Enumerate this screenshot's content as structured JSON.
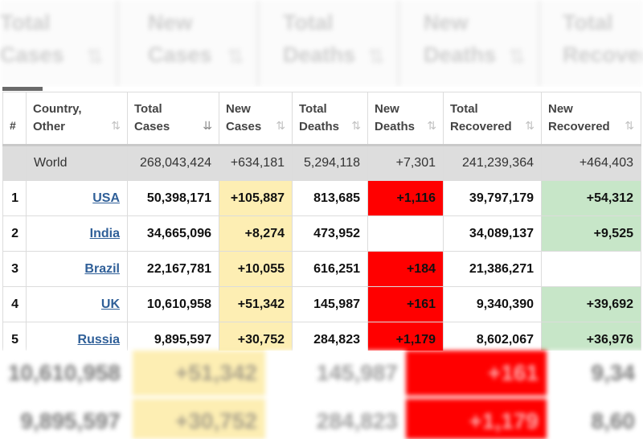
{
  "table": {
    "headers": [
      {
        "label": "#",
        "sortable": false
      },
      {
        "label": "Country,\nOther",
        "sortable": true
      },
      {
        "label": "Total\nCases",
        "sortable": true,
        "active": true
      },
      {
        "label": "New\nCases",
        "sortable": true
      },
      {
        "label": "Total\nDeaths",
        "sortable": true
      },
      {
        "label": "New\nDeaths",
        "sortable": true
      },
      {
        "label": "Total\nRecovered",
        "sortable": true
      },
      {
        "label": "New\nRecovered",
        "sortable": true
      }
    ],
    "world": {
      "country": "World",
      "total_cases": "268,043,424",
      "new_cases": "+634,181",
      "total_deaths": "5,294,118",
      "new_deaths": "+7,301",
      "total_recovered": "241,239,364",
      "new_recovered": "+464,403"
    },
    "rows": [
      {
        "rank": "1",
        "country": "USA",
        "total_cases": "50,398,171",
        "new_cases": "+105,887",
        "total_deaths": "813,685",
        "new_deaths": "+1,116",
        "total_recovered": "39,797,179",
        "new_recovered": "+54,312"
      },
      {
        "rank": "2",
        "country": "India",
        "total_cases": "34,665,096",
        "new_cases": "+8,274",
        "total_deaths": "473,952",
        "new_deaths": "",
        "total_recovered": "34,089,137",
        "new_recovered": "+9,525"
      },
      {
        "rank": "3",
        "country": "Brazil",
        "total_cases": "22,167,781",
        "new_cases": "+10,055",
        "total_deaths": "616,251",
        "new_deaths": "+184",
        "total_recovered": "21,386,271",
        "new_recovered": ""
      },
      {
        "rank": "4",
        "country": "UK",
        "total_cases": "10,610,958",
        "new_cases": "+51,342",
        "total_deaths": "145,987",
        "new_deaths": "+161",
        "total_recovered": "9,340,390",
        "new_recovered": "+39,692"
      },
      {
        "rank": "5",
        "country": "Russia",
        "total_cases": "9,895,597",
        "new_cases": "+30,752",
        "total_deaths": "284,823",
        "new_deaths": "+1,179",
        "total_recovered": "8,602,067",
        "new_recovered": "+36,976"
      }
    ]
  },
  "background": {
    "header_labels": [
      "Total\nCases",
      "New\nCases",
      "Total\nDeaths",
      "New\nDeaths",
      "Total\nRecovered"
    ],
    "rows": [
      {
        "total_cases": "10,610,958",
        "new_cases": "+51,342",
        "total_deaths": "145,987",
        "new_deaths": "+161",
        "total_recovered": "9,34"
      },
      {
        "total_cases": "9,895,597",
        "new_cases": "+30,752",
        "total_deaths": "284,823",
        "new_deaths": "+1,179",
        "total_recovered": "8,60"
      }
    ]
  },
  "colors": {
    "new_cases_bg": "#fdeeb3",
    "new_deaths_bg": "#ff0000",
    "new_recovered_bg": "#c7e6c8",
    "world_bg": "#dddddd",
    "link": "#2f5f98"
  },
  "icons": {
    "sort": "sort-arrows-icon",
    "sort_active": "sort-desc-icon"
  }
}
